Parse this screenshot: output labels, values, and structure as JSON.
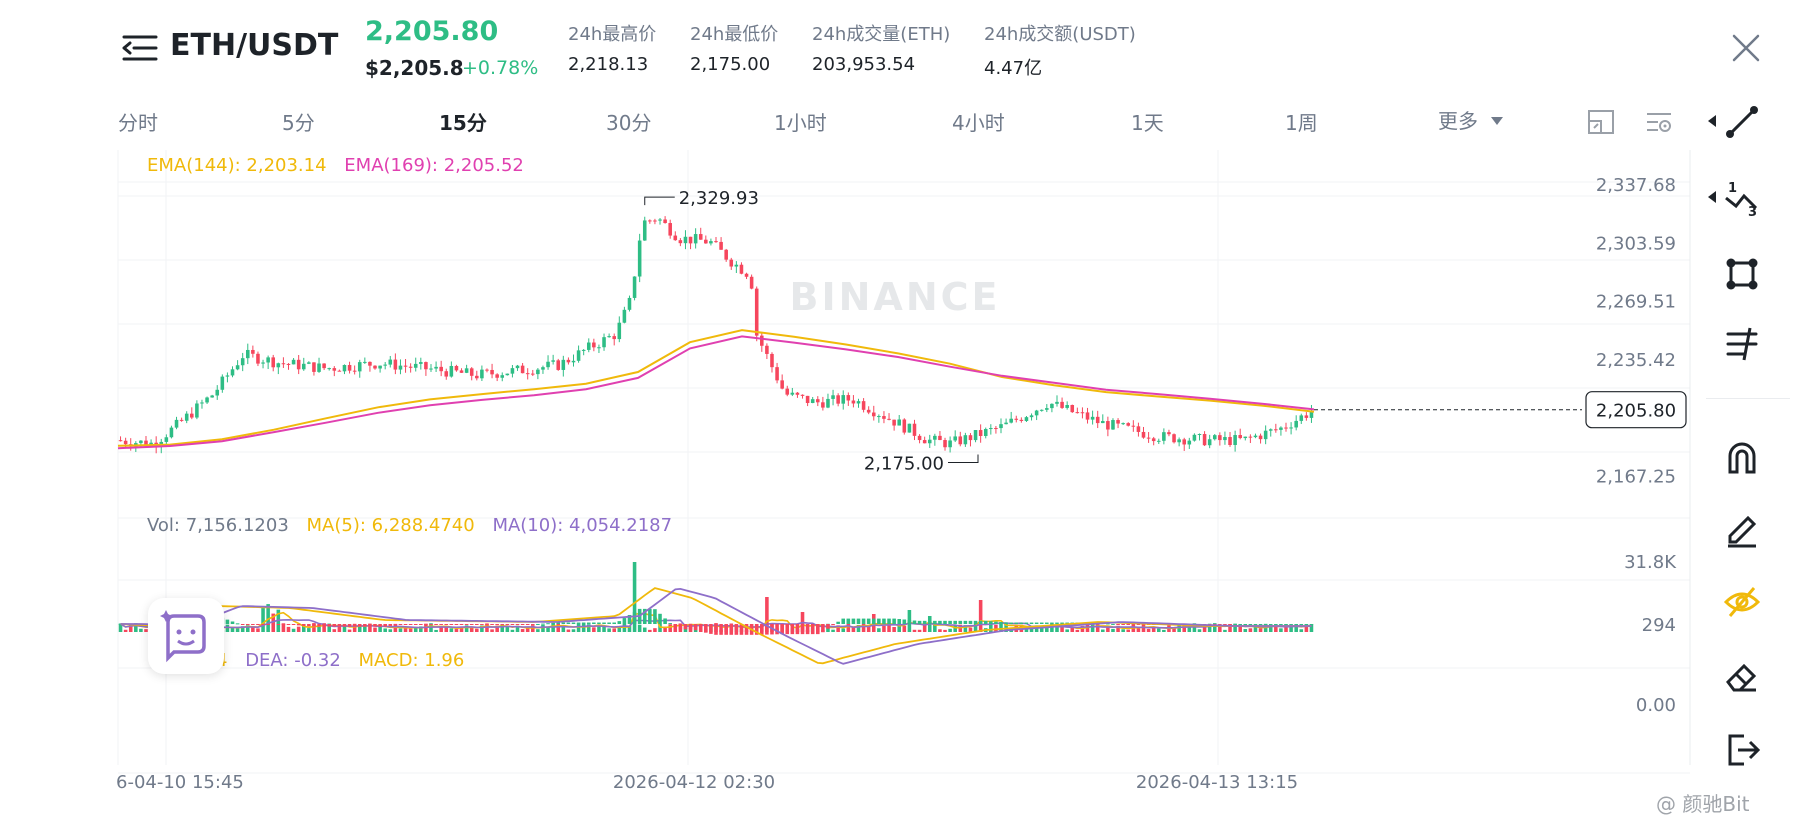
{
  "header": {
    "symbol": "ETH/USDT",
    "last_price": "2,205.80",
    "usd_price": "$2,205.8",
    "change_pct": "+0.78%",
    "stats": [
      {
        "label": "24h最高价",
        "value": "2,218.13"
      },
      {
        "label": "24h最低价",
        "value": "2,175.00"
      },
      {
        "label": "24h成交量(ETH)",
        "value": "203,953.54"
      },
      {
        "label": "24h成交额(USDT)",
        "value": "4.47亿"
      }
    ]
  },
  "intervals": {
    "tabs": [
      "分时",
      "5分",
      "15分",
      "30分",
      "1小时",
      "4小时",
      "1天",
      "1周"
    ],
    "active": "15分",
    "more_label": "更多"
  },
  "toolbar": {
    "icons": [
      "line-tool-icon",
      "fib-tool-icon",
      "shape-tool-icon",
      "indicator-tool-icon",
      "magnet-icon",
      "pencil-icon",
      "eye-slash-icon",
      "eraser-icon",
      "exit-icon"
    ]
  },
  "colors": {
    "up": "#2ebd85",
    "down": "#f6465d",
    "ema144": "#f0b90b",
    "ema169": "#e040b0",
    "ma10": "#8e6fc9",
    "watermark": "#e6e8ea"
  },
  "legends": {
    "ema144": "EMA(144): 2,203.14",
    "ema169": "EMA(169): 2,205.52",
    "vol": "Vol: 7,156.1203",
    "ma5": "MA(5): 6,288.4740",
    "ma10": "MA(10): 4,054.2187",
    "dif": "4",
    "dea": "DEA: -0.32",
    "macd": "MACD: 1.96"
  },
  "watermark_text": "BINANCE",
  "footer_watermark": "@ 颜驰Bit",
  "chart_data": {
    "type": "candlestick",
    "price_axis": {
      "ticks": [
        "2,337.68",
        "2,303.59",
        "2,269.51",
        "2,235.42",
        "2,167.25"
      ],
      "ylim": [
        2155.4,
        2342.3
      ]
    },
    "last_price_label": "2,205.80",
    "high_label": "2,329.93",
    "low_label": "2,175.00",
    "volume_axis": {
      "ticks": [
        "31.8K",
        "294"
      ]
    },
    "macd_axis": {
      "ticks": [
        "0.00"
      ]
    },
    "time_ticks": [
      "6-04-10 15:45",
      "2026-04-12 02:30",
      "2026-04-13 13:15"
    ],
    "series": [
      {
        "name": "EMA(144)",
        "values": [
          2184.7,
          2185.4,
          2188.6,
          2194.1,
          2200.8,
          2207.2,
          2211.8,
          2214.9,
          2217.8,
          2221.0,
          2227.8,
          2245.2,
          2252.3,
          2248.4,
          2243.9,
          2238.7,
          2232.7,
          2224.9,
          2220.1,
          2216.1,
          2213.5,
          2211.1,
          2208.2,
          2204.6
        ]
      },
      {
        "name": "EMA(169)",
        "values": [
          2183.3,
          2184.6,
          2187.4,
          2192.7,
          2198.2,
          2204.0,
          2208.4,
          2211.5,
          2214.3,
          2217.8,
          2224.4,
          2241.6,
          2248.6,
          2245.0,
          2241.0,
          2236.6,
          2230.9,
          2225.6,
          2221.5,
          2217.5,
          2214.9,
          2212.2,
          2209.3,
          2206.0
        ]
      }
    ]
  }
}
